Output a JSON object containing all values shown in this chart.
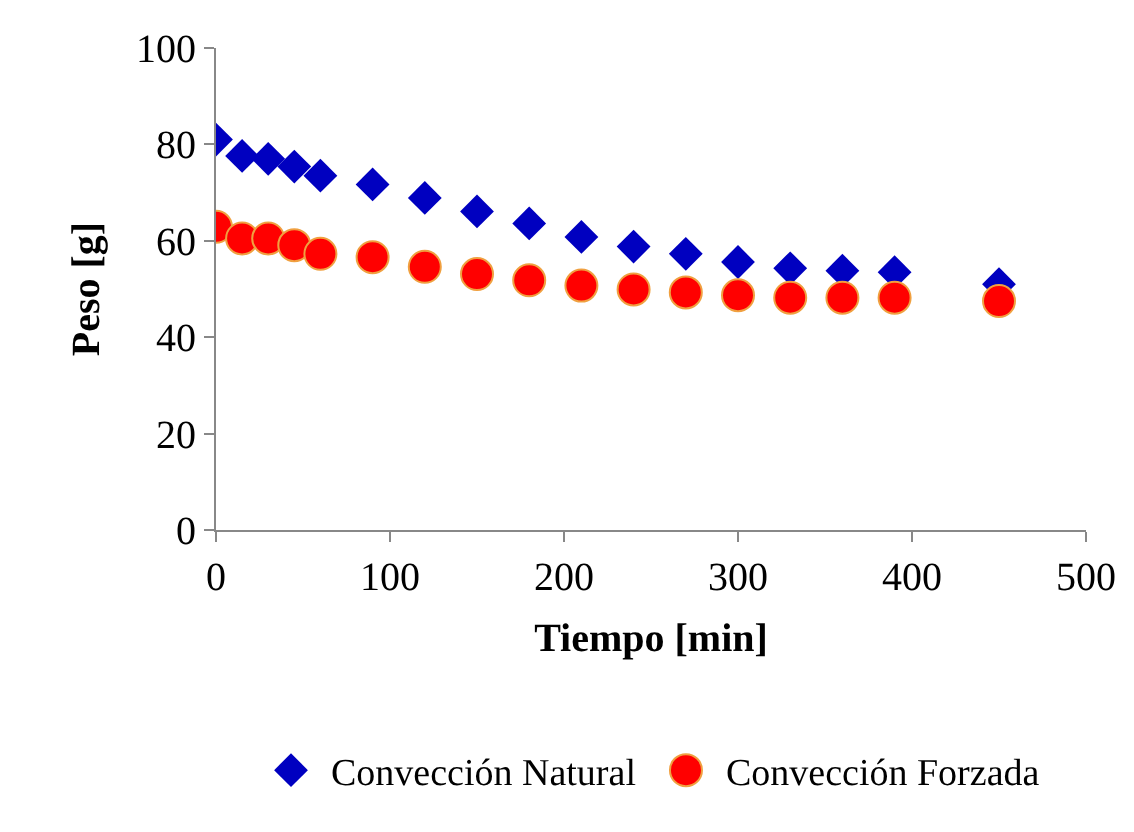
{
  "chart_data": {
    "type": "scatter",
    "xlabel": "Tiempo [min]",
    "ylabel": "Peso [g]",
    "x": [
      0,
      15,
      30,
      45,
      60,
      90,
      120,
      150,
      180,
      210,
      240,
      270,
      300,
      330,
      360,
      390,
      450
    ],
    "series": [
      {
        "name": "Convección Natural",
        "color": "#0000c0",
        "marker": "diamond",
        "values": [
          81,
          77.6,
          77,
          75.4,
          73.5,
          71.7,
          68.9,
          66.1,
          63.6,
          60.8,
          58.8,
          57.3,
          55.6,
          54.3,
          53.8,
          53.5,
          51
        ]
      },
      {
        "name": "Convección Forzada",
        "color": "#ff0000",
        "marker": "circle",
        "values": [
          62.9,
          60.5,
          60.5,
          59.1,
          57.3,
          56.6,
          54.6,
          53.1,
          51.8,
          50.7,
          49.9,
          49.3,
          48.7,
          48.2,
          48.2,
          48.2,
          47.5
        ]
      }
    ],
    "xlim": [
      0,
      500
    ],
    "xticks": [
      0,
      100,
      200,
      300,
      400,
      500
    ],
    "ylim": [
      0,
      100
    ],
    "yticks": [
      0,
      20,
      40,
      60,
      80,
      100
    ],
    "grid": false,
    "legend": "bottom"
  }
}
